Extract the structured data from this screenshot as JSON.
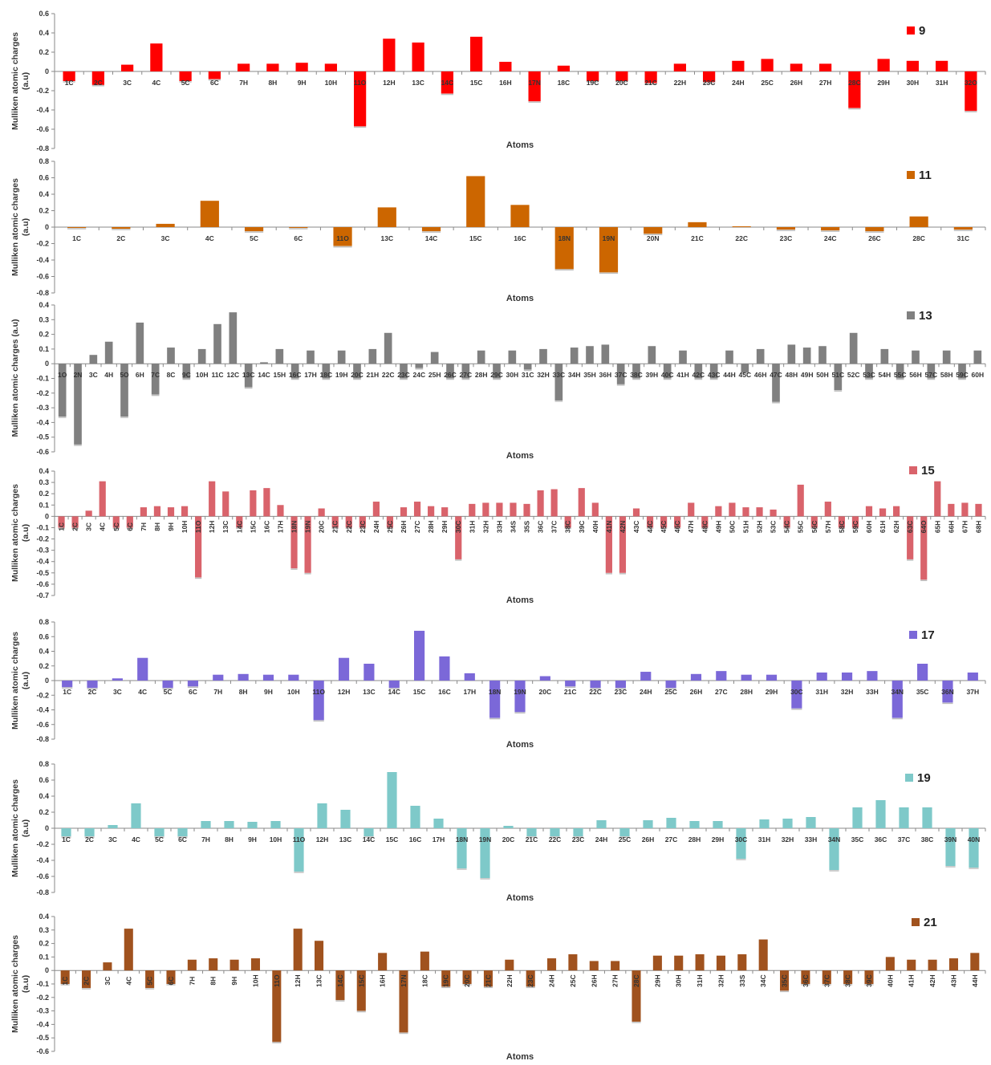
{
  "chart_data": [
    {
      "type": "bar",
      "legend": "9",
      "color": "#ff0000",
      "xlabel": "Atoms",
      "ylabel": [
        "Mulliken atomic charges",
        "(a.u)"
      ],
      "ylim": [
        -0.8,
        0.6
      ],
      "yticks": [
        0.6,
        0.4,
        0.2,
        0,
        -0.2,
        -0.4,
        -0.6,
        -0.8
      ],
      "ytick_labels": [
        "0.6",
        "0.4",
        "0.2",
        "0",
        "-0.2",
        "-0.4",
        "-0.6",
        "-0.8"
      ],
      "legend_position": "top-right",
      "categories": [
        "1C",
        "2C",
        "3C",
        "4C",
        "5C",
        "6C",
        "7H",
        "8H",
        "9H",
        "10H",
        "11O",
        "12H",
        "13C",
        "14C",
        "15C",
        "16H",
        "17N",
        "18C",
        "19C",
        "20C",
        "21C",
        "22H",
        "23C",
        "24H",
        "25C",
        "26H",
        "27H",
        "28C",
        "29H",
        "30H",
        "31H",
        "32O"
      ],
      "values": [
        -0.1,
        -0.14,
        0.07,
        0.29,
        -0.1,
        -0.08,
        0.08,
        0.08,
        0.09,
        0.08,
        -0.57,
        0.34,
        0.3,
        -0.23,
        0.36,
        0.1,
        -0.31,
        0.06,
        -0.1,
        -0.1,
        -0.12,
        0.08,
        -0.11,
        0.11,
        0.13,
        0.08,
        0.08,
        -0.38,
        0.13,
        0.11,
        0.11,
        -0.41
      ]
    },
    {
      "type": "bar",
      "legend": "11",
      "color": "#cc6600",
      "xlabel": "Atoms",
      "ylabel": [
        "Mulliken atomic charges",
        "(a.u)"
      ],
      "ylim": [
        -0.8,
        0.8
      ],
      "yticks": [
        0.8,
        0.6,
        0.4,
        0.2,
        0,
        -0.2,
        -0.4,
        -0.6,
        -0.8
      ],
      "ytick_labels": [
        "0.8",
        "0.6",
        "0.4",
        "0.2",
        "0",
        "-0.2",
        "-0.4",
        "-0.6",
        "-0.8"
      ],
      "legend_position": "top-right",
      "categories": [
        "1C",
        "2C",
        "3C",
        "4C",
        "5C",
        "6C",
        "11O",
        "13C",
        "14C",
        "15C",
        "16C",
        "18N",
        "19N",
        "20N",
        "21C",
        "22C",
        "23C",
        "24C",
        "26C",
        "28C",
        "31C"
      ],
      "values": [
        -0.01,
        -0.02,
        0.04,
        0.32,
        -0.05,
        -0.01,
        -0.23,
        0.24,
        -0.05,
        0.62,
        0.27,
        -0.51,
        -0.55,
        -0.08,
        0.06,
        0.01,
        -0.03,
        -0.04,
        -0.05,
        0.13,
        -0.03
      ]
    },
    {
      "type": "bar",
      "legend": "13",
      "color": "#808080",
      "xlabel": "Atoms",
      "ylabel": [
        "Mulliken atomic charges (a.u)"
      ],
      "ylim": [
        -0.6,
        0.4
      ],
      "yticks": [
        0.4,
        0.3,
        0.2,
        0.1,
        0,
        -0.1,
        -0.2,
        -0.3,
        -0.4,
        -0.5,
        -0.6
      ],
      "ytick_labels": [
        "0.4",
        "0.3",
        "0.2",
        "0.1",
        "0",
        "-0.1",
        "-0.2",
        "-0.3",
        "-0.4",
        "-0.5",
        "-0.6"
      ],
      "legend_position": "top-right",
      "categories": [
        "1O",
        "2N",
        "3C",
        "4H",
        "5O",
        "6H",
        "7C",
        "8C",
        "9C",
        "10H",
        "11C",
        "12C",
        "13C",
        "14C",
        "15H",
        "16C",
        "17H",
        "18C",
        "19H",
        "20C",
        "21H",
        "22C",
        "23C",
        "24C",
        "25H",
        "26C",
        "27C",
        "28H",
        "29C",
        "30H",
        "31C",
        "32H",
        "33C",
        "34H",
        "35H",
        "36H",
        "37C",
        "38C",
        "39H",
        "40C",
        "41H",
        "42C",
        "43C",
        "44H",
        "45C",
        "46H",
        "47C",
        "48H",
        "49H",
        "50H",
        "51C",
        "52C",
        "53C",
        "54H",
        "55C",
        "56H",
        "57C",
        "58H",
        "59C",
        "60H"
      ],
      "values": [
        -0.36,
        -0.55,
        0.06,
        0.15,
        -0.36,
        0.28,
        -0.21,
        0.11,
        -0.1,
        0.1,
        0.27,
        0.35,
        -0.16,
        0.01,
        0.1,
        -0.1,
        0.09,
        -0.1,
        0.09,
        -0.1,
        0.1,
        0.21,
        -0.1,
        -0.03,
        0.08,
        -0.1,
        -0.1,
        0.09,
        -0.1,
        0.09,
        -0.04,
        0.1,
        -0.25,
        0.11,
        0.12,
        0.13,
        -0.14,
        -0.1,
        0.12,
        -0.1,
        0.09,
        -0.1,
        -0.1,
        0.09,
        -0.06,
        0.1,
        -0.26,
        0.13,
        0.11,
        0.12,
        -0.18,
        0.21,
        -0.1,
        0.1,
        -0.1,
        0.09,
        -0.1,
        0.09,
        -0.1,
        0.09
      ]
    },
    {
      "type": "bar",
      "legend": "15",
      "color": "#d9636b",
      "xlabel": "Atoms",
      "ylabel": [
        "Mulliken atomic charges",
        "(a.u)"
      ],
      "ylim": [
        -0.7,
        0.4
      ],
      "yticks": [
        0.4,
        0.3,
        0.2,
        0.1,
        0,
        -0.1,
        -0.2,
        -0.3,
        -0.4,
        -0.5,
        -0.6,
        -0.7
      ],
      "ytick_labels": [
        "0.4",
        "0.3",
        "0.2",
        "0.1",
        "0",
        "-0.1",
        "-0.2",
        "-0.3",
        "-0.4",
        "-0.5",
        "-0.6",
        "-0.7"
      ],
      "legend_position": "top-right",
      "categories": [
        "1C",
        "2C",
        "3C",
        "4C",
        "5C",
        "6C",
        "7H",
        "8H",
        "9H",
        "10H",
        "11O",
        "12H",
        "13C",
        "14C",
        "15C",
        "16C",
        "17H",
        "18N",
        "19N",
        "20C",
        "21C",
        "22C",
        "23C",
        "24H",
        "25C",
        "26H",
        "27C",
        "28H",
        "29H",
        "30C",
        "31H",
        "32H",
        "33H",
        "34S",
        "35S",
        "36C",
        "37C",
        "38C",
        "39C",
        "40H",
        "41N",
        "42N",
        "43C",
        "44C",
        "45C",
        "46C",
        "47H",
        "48C",
        "49H",
        "50C",
        "51H",
        "52H",
        "53C",
        "54C",
        "55C",
        "56C",
        "57H",
        "58C",
        "59C",
        "60H",
        "61H",
        "62H",
        "63C",
        "64O",
        "65H",
        "66H",
        "67H",
        "68H"
      ],
      "values": [
        -0.1,
        -0.1,
        0.05,
        0.31,
        -0.1,
        -0.1,
        0.08,
        0.09,
        0.08,
        0.09,
        -0.54,
        0.31,
        0.22,
        -0.1,
        0.23,
        0.25,
        0.1,
        -0.46,
        -0.5,
        0.07,
        -0.1,
        -0.1,
        -0.1,
        0.13,
        -0.1,
        0.08,
        0.13,
        0.09,
        0.08,
        -0.38,
        0.11,
        0.12,
        0.12,
        0.12,
        0.11,
        0.23,
        0.24,
        -0.1,
        0.25,
        0.12,
        -0.5,
        -0.5,
        0.07,
        -0.1,
        -0.1,
        -0.1,
        0.12,
        -0.1,
        0.09,
        0.12,
        0.08,
        0.08,
        0.06,
        -0.1,
        0.28,
        -0.1,
        0.13,
        -0.1,
        -0.1,
        0.09,
        0.07,
        0.09,
        -0.38,
        -0.56,
        0.31,
        0.11,
        0.12,
        0.11
      ]
    },
    {
      "type": "bar",
      "legend": "17",
      "color": "#7b68d8",
      "xlabel": "Atoms",
      "ylabel": [
        "Mulliken atomic charges",
        "(a.u)"
      ],
      "ylim": [
        -0.8,
        0.8
      ],
      "yticks": [
        0.8,
        0.6,
        0.4,
        0.2,
        0,
        -0.2,
        -0.4,
        -0.6,
        -0.8
      ],
      "ytick_labels": [
        "0.8",
        "0.6",
        "0.4",
        "0.2",
        "0",
        "-0.2",
        "-0.4",
        "-0.6",
        "-0.8"
      ],
      "legend_position": "top-right",
      "categories": [
        "1C",
        "2C",
        "3C",
        "4C",
        "5C",
        "6C",
        "7H",
        "8H",
        "9H",
        "10H",
        "11O",
        "12H",
        "13C",
        "14C",
        "15C",
        "16C",
        "17H",
        "18N",
        "19N",
        "20C",
        "21C",
        "22C",
        "23C",
        "24H",
        "25C",
        "26H",
        "27C",
        "28H",
        "29H",
        "30C",
        "31H",
        "32H",
        "33H",
        "34N",
        "35C",
        "36N",
        "37H"
      ],
      "values": [
        -0.09,
        -0.1,
        0.03,
        0.31,
        -0.1,
        -0.08,
        0.08,
        0.09,
        0.08,
        0.08,
        -0.54,
        0.31,
        0.23,
        -0.1,
        0.68,
        0.33,
        0.1,
        -0.51,
        -0.43,
        0.06,
        -0.08,
        -0.1,
        -0.1,
        0.12,
        -0.1,
        0.09,
        0.13,
        0.08,
        0.08,
        -0.38,
        0.11,
        0.11,
        0.13,
        -0.51,
        0.23,
        -0.3,
        0.11
      ]
    },
    {
      "type": "bar",
      "legend": "19",
      "color": "#7ec9c9",
      "xlabel": "Atoms",
      "ylabel": [
        "Mulliken atomic charges",
        "(a.u)"
      ],
      "ylim": [
        -0.8,
        0.8
      ],
      "yticks": [
        0.8,
        0.6,
        0.4,
        0.2,
        0,
        -0.2,
        -0.4,
        -0.6,
        -0.8
      ],
      "ytick_labels": [
        "0.8",
        "0.6",
        "0.4",
        "0.2",
        "0",
        "-0.2",
        "-0.4",
        "-0.6",
        "-0.8"
      ],
      "legend_position": "top-right",
      "categories": [
        "1C",
        "2C",
        "3C",
        "4C",
        "5C",
        "6C",
        "7H",
        "8H",
        "9H",
        "10H",
        "11O",
        "12H",
        "13C",
        "14C",
        "15C",
        "16C",
        "17H",
        "18N",
        "19N",
        "20C",
        "21C",
        "22C",
        "23C",
        "24H",
        "25C",
        "26H",
        "27C",
        "28H",
        "29H",
        "30C",
        "31H",
        "32H",
        "33H",
        "34N",
        "35C",
        "36C",
        "37C",
        "38C",
        "39N",
        "40N"
      ],
      "values": [
        -0.1,
        -0.1,
        0.04,
        0.31,
        -0.1,
        -0.1,
        0.09,
        0.09,
        0.08,
        0.09,
        -0.54,
        0.31,
        0.23,
        -0.1,
        0.7,
        0.28,
        0.12,
        -0.5,
        -0.62,
        0.03,
        -0.1,
        -0.1,
        -0.1,
        0.1,
        -0.1,
        0.1,
        0.13,
        0.09,
        0.09,
        -0.38,
        0.11,
        0.12,
        0.14,
        -0.52,
        0.26,
        0.35,
        0.26,
        0.26,
        -0.47,
        -0.49
      ]
    },
    {
      "type": "bar",
      "legend": "21",
      "color": "#a0521e",
      "xlabel": "Atoms",
      "ylabel": [
        "Mulliken atomic charges",
        "(a.u)"
      ],
      "ylim": [
        -0.6,
        0.4
      ],
      "yticks": [
        0.4,
        0.3,
        0.2,
        0.1,
        0,
        -0.1,
        -0.2,
        -0.3,
        -0.4,
        -0.5,
        -0.6
      ],
      "ytick_labels": [
        "0.4",
        "0.3",
        "0.2",
        "0.1",
        "0",
        "-0.1",
        "-0.2",
        "-0.3",
        "-0.4",
        "-0.5",
        "-0.6"
      ],
      "legend_position": "top-right",
      "categories": [
        "1C",
        "2C",
        "3C",
        "4C",
        "5C",
        "6C",
        "7H",
        "8H",
        "9H",
        "10H",
        "11O",
        "12H",
        "13C",
        "14C",
        "15C",
        "16H",
        "17N",
        "18C",
        "19C",
        "20C",
        "21C",
        "22H",
        "23C",
        "24H",
        "25C",
        "26H",
        "27H",
        "28C",
        "29H",
        "30H",
        "31H",
        "32H",
        "33S",
        "34C",
        "35C",
        "36C",
        "37C",
        "38C",
        "39C",
        "40H",
        "41H",
        "42H",
        "43H",
        "44H"
      ],
      "values": [
        -0.1,
        -0.13,
        0.06,
        0.31,
        -0.13,
        -0.1,
        0.08,
        0.09,
        0.08,
        0.09,
        -0.53,
        0.31,
        0.22,
        -0.22,
        -0.3,
        0.13,
        -0.46,
        0.14,
        -0.12,
        -0.1,
        -0.12,
        0.08,
        -0.12,
        0.09,
        0.12,
        0.07,
        0.07,
        -0.38,
        0.11,
        0.11,
        0.12,
        0.11,
        0.12,
        0.23,
        -0.15,
        -0.1,
        -0.1,
        -0.1,
        -0.1,
        0.1,
        0.08,
        0.08,
        0.09,
        0.13
      ]
    }
  ]
}
